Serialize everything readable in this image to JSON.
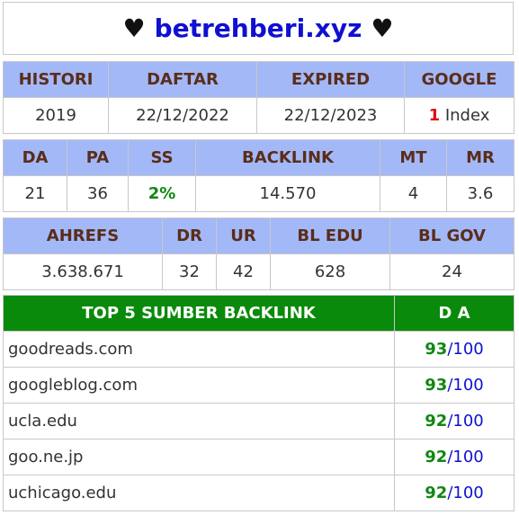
{
  "site": {
    "heart": "♥",
    "domain": "betrehberi.xyz"
  },
  "table1": {
    "headers": [
      "HISTORI",
      "DAFTAR",
      "EXPIRED",
      "GOOGLE"
    ],
    "values": [
      "2019",
      "22/12/2022",
      "22/12/2023"
    ],
    "google_count": "1",
    "google_label": "Index"
  },
  "table2": {
    "headers": [
      "DA",
      "PA",
      "SS",
      "BACKLINK",
      "MT",
      "MR"
    ],
    "values": [
      "21",
      "36",
      "2%",
      "14.570",
      "4",
      "3.6"
    ]
  },
  "table3": {
    "headers": [
      "AHREFS",
      "DR",
      "UR",
      "BL EDU",
      "BL GOV"
    ],
    "values": [
      "3.638.671",
      "32",
      "42",
      "628",
      "24"
    ]
  },
  "table4": {
    "headers": [
      "TOP 5 SUMBER BACKLINK",
      "D A"
    ],
    "rows": [
      {
        "domain": "goodreads.com",
        "da": "93",
        "sep": "/",
        "max": "100"
      },
      {
        "domain": "googleblog.com",
        "da": "93",
        "sep": "/",
        "max": "100"
      },
      {
        "domain": "ucla.edu",
        "da": "92",
        "sep": "/",
        "max": "100"
      },
      {
        "domain": "goo.ne.jp",
        "da": "92",
        "sep": "/",
        "max": "100"
      },
      {
        "domain": "uchicago.edu",
        "da": "92",
        "sep": "/",
        "max": "100"
      }
    ]
  },
  "colors": {
    "header_bg": "#a3b8f7",
    "header_text": "#5a2d1a",
    "top_header_bg": "#0a8a0a",
    "domain_color": "#1010d0",
    "ss_color": "#118811",
    "google_count_color": "#e01010"
  }
}
